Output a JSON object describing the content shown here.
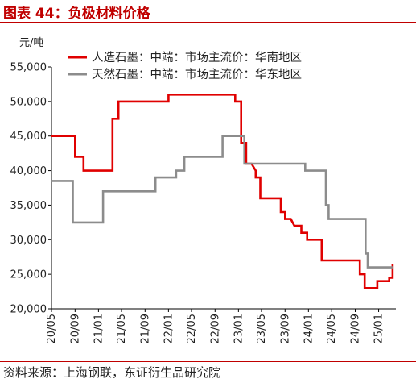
{
  "header": {
    "title": "图表 44：负极材料价格",
    "unit": "元/吨"
  },
  "footer": {
    "source": "资料来源：上海钢联，东证衍生品研究院"
  },
  "colors": {
    "accent": "#C00000",
    "series1": "#E00000",
    "series2": "#8C8C8C"
  },
  "chart_data": {
    "type": "line",
    "ylabel": "元/吨",
    "ylim": [
      20000,
      55000
    ],
    "yticks": [
      "20,000",
      "25,000",
      "30,000",
      "35,000",
      "40,000",
      "45,000",
      "50,000",
      "55,000"
    ],
    "xticks": [
      "20/05",
      "20/09",
      "21/01",
      "21/05",
      "21/09",
      "22/01",
      "22/05",
      "22/09",
      "23/01",
      "23/05",
      "23/09",
      "24/01",
      "24/05",
      "24/09",
      "25/01"
    ],
    "legend_position": "top-right",
    "grid": false,
    "series": [
      {
        "name": "人造石墨：中端：市场主流价：华南地区",
        "color": "#E00000",
        "points": [
          [
            "2020-05-01",
            45000
          ],
          [
            "2020-09-01",
            45000
          ],
          [
            "2020-09-01",
            42000
          ],
          [
            "2020-10-15",
            42000
          ],
          [
            "2020-10-15",
            40000
          ],
          [
            "2021-03-15",
            40000
          ],
          [
            "2021-03-15",
            47500
          ],
          [
            "2021-04-15",
            47500
          ],
          [
            "2021-04-15",
            50000
          ],
          [
            "2022-01-01",
            50000
          ],
          [
            "2022-01-01",
            51000
          ],
          [
            "2022-12-15",
            51000
          ],
          [
            "2022-12-15",
            50000
          ],
          [
            "2023-01-15",
            50000
          ],
          [
            "2023-01-15",
            44000
          ],
          [
            "2023-02-10",
            44000
          ],
          [
            "2023-02-10",
            41000
          ],
          [
            "2023-03-10",
            41000
          ],
          [
            "2023-04-01",
            40000
          ],
          [
            "2023-04-01",
            39000
          ],
          [
            "2023-04-25",
            39000
          ],
          [
            "2023-04-25",
            36000
          ],
          [
            "2023-08-10",
            36000
          ],
          [
            "2023-08-10",
            34000
          ],
          [
            "2023-09-01",
            34000
          ],
          [
            "2023-09-01",
            33000
          ],
          [
            "2023-10-01",
            33000
          ],
          [
            "2023-10-20",
            32000
          ],
          [
            "2023-11-25",
            32000
          ],
          [
            "2023-11-25",
            31000
          ],
          [
            "2023-12-25",
            31000
          ],
          [
            "2023-12-25",
            30000
          ],
          [
            "2024-03-10",
            30000
          ],
          [
            "2024-03-10",
            27000
          ],
          [
            "2024-09-25",
            27000
          ],
          [
            "2024-09-25",
            25000
          ],
          [
            "2024-10-20",
            25000
          ],
          [
            "2024-10-20",
            23000
          ],
          [
            "2024-12-25",
            23000
          ],
          [
            "2024-12-25",
            24000
          ],
          [
            "2025-02-25",
            24000
          ],
          [
            "2025-02-25",
            24500
          ],
          [
            "2025-03-15",
            24500
          ],
          [
            "2025-03-15",
            26500
          ]
        ]
      },
      {
        "name": "天然石墨：中端：市场主流价：华东地区",
        "color": "#8C8C8C",
        "points": [
          [
            "2020-05-01",
            38500
          ],
          [
            "2020-08-20",
            38500
          ],
          [
            "2020-08-20",
            32500
          ],
          [
            "2021-01-25",
            32500
          ],
          [
            "2021-01-25",
            37000
          ],
          [
            "2021-10-25",
            37000
          ],
          [
            "2021-10-25",
            39000
          ],
          [
            "2022-02-10",
            39000
          ],
          [
            "2022-02-10",
            40000
          ],
          [
            "2022-03-25",
            40000
          ],
          [
            "2022-03-25",
            42000
          ],
          [
            "2022-10-10",
            42000
          ],
          [
            "2022-10-10",
            45000
          ],
          [
            "2023-02-01",
            45000
          ],
          [
            "2023-02-01",
            41000
          ],
          [
            "2023-12-15",
            41000
          ],
          [
            "2023-12-15",
            40000
          ],
          [
            "2024-04-01",
            40000
          ],
          [
            "2024-04-01",
            35000
          ],
          [
            "2024-04-15",
            35000
          ],
          [
            "2024-04-15",
            33000
          ],
          [
            "2024-10-25",
            33000
          ],
          [
            "2024-10-25",
            28000
          ],
          [
            "2024-11-05",
            28000
          ],
          [
            "2024-11-05",
            26000
          ],
          [
            "2025-03-15",
            26000
          ]
        ]
      }
    ]
  }
}
